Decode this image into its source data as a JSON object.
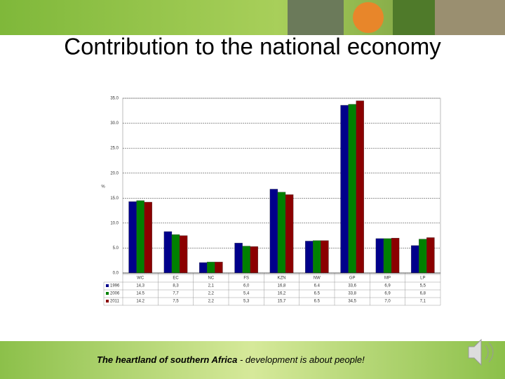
{
  "slide": {
    "title": "Contribution to the national economy"
  },
  "chart_data": {
    "type": "bar",
    "y_label": "%",
    "categories": [
      "WC",
      "EC",
      "NC",
      "FS",
      "KZN",
      "NW",
      "GP",
      "MP",
      "LP"
    ],
    "series": [
      {
        "name": "1996",
        "color": "#00008b",
        "values": [
          14.3,
          8.3,
          2.1,
          6.0,
          16.8,
          6.4,
          33.6,
          6.9,
          5.5
        ],
        "value_labels": [
          "14,3",
          "8,3",
          "2,1",
          "6,0",
          "16,8",
          "6.4",
          "33,6",
          "6,9",
          "5,5"
        ]
      },
      {
        "name": "2006",
        "color": "#008000",
        "values": [
          14.5,
          7.7,
          2.2,
          5.4,
          16.2,
          6.5,
          33.8,
          6.9,
          6.8
        ],
        "value_labels": [
          "14.5",
          "7,7",
          "2,2",
          "5,4",
          "16,2",
          "6.5",
          "33,8",
          "6,9",
          "6,8"
        ]
      },
      {
        "name": "2011",
        "color": "#8b0000",
        "values": [
          14.2,
          7.5,
          2.2,
          5.3,
          15.7,
          6.5,
          34.5,
          7.0,
          7.1
        ],
        "value_labels": [
          "14.2",
          "7,5",
          "2,2",
          "5,3",
          "15,7",
          "6.5",
          "34,5",
          "7,0",
          "7,1"
        ]
      }
    ],
    "ylim": [
      0,
      35
    ],
    "yticks": [
      {
        "value": 0,
        "label": "0.0"
      },
      {
        "value": 5,
        "label": "5.0"
      },
      {
        "value": 10,
        "label": "10.0"
      },
      {
        "value": 15,
        "label": "15.0"
      },
      {
        "value": 20,
        "label": "20.0"
      },
      {
        "value": 25,
        "label": "25.0"
      },
      {
        "value": 30,
        "label": "30.0"
      },
      {
        "value": 35,
        "label": "35.0"
      }
    ],
    "grid": true
  },
  "footer": {
    "bold": "The heartland of southern Africa",
    "rest": " - development is about people!"
  }
}
